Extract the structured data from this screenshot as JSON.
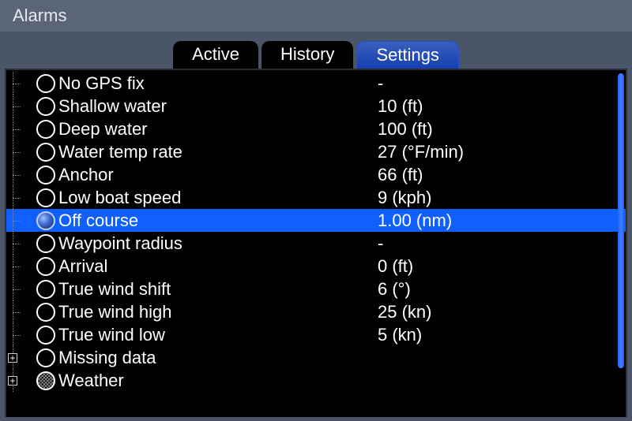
{
  "title": "Alarms",
  "tabs": {
    "active": "Active",
    "history": "History",
    "settings": "Settings"
  },
  "selected_index": 6,
  "rows": [
    {
      "label": "No GPS fix",
      "value": "-",
      "expand": false,
      "hatched": false
    },
    {
      "label": "Shallow water",
      "value": "10 (ft)",
      "expand": false,
      "hatched": false
    },
    {
      "label": "Deep water",
      "value": "100 (ft)",
      "expand": false,
      "hatched": false
    },
    {
      "label": "Water temp rate",
      "value": "27 (°F/min)",
      "expand": false,
      "hatched": false
    },
    {
      "label": "Anchor",
      "value": "66 (ft)",
      "expand": false,
      "hatched": false
    },
    {
      "label": "Low boat speed",
      "value": "9 (kph)",
      "expand": false,
      "hatched": false
    },
    {
      "label": "Off course",
      "value": "1.00 (nm)",
      "expand": false,
      "hatched": false
    },
    {
      "label": "Waypoint radius",
      "value": "-",
      "expand": false,
      "hatched": false
    },
    {
      "label": "Arrival",
      "value": "0 (ft)",
      "expand": false,
      "hatched": false
    },
    {
      "label": "True wind shift",
      "value": "6 (°)",
      "expand": false,
      "hatched": false
    },
    {
      "label": "True wind high",
      "value": "25 (kn)",
      "expand": false,
      "hatched": false
    },
    {
      "label": "True wind low",
      "value": "5 (kn)",
      "expand": false,
      "hatched": false
    },
    {
      "label": "Missing data",
      "value": "",
      "expand": true,
      "hatched": false
    },
    {
      "label": "Weather",
      "value": "",
      "expand": true,
      "hatched": true
    }
  ],
  "colors": {
    "bg": "#4a5568",
    "titlebar": "#5a6578",
    "panel": "#000000",
    "text": "#ffffff",
    "selected_row": "#1060ff",
    "tab_active_top": "#3a5fc0",
    "tab_active_bottom": "#1540b0",
    "scrollbar": "#3070ff"
  },
  "expand_glyph": "+"
}
